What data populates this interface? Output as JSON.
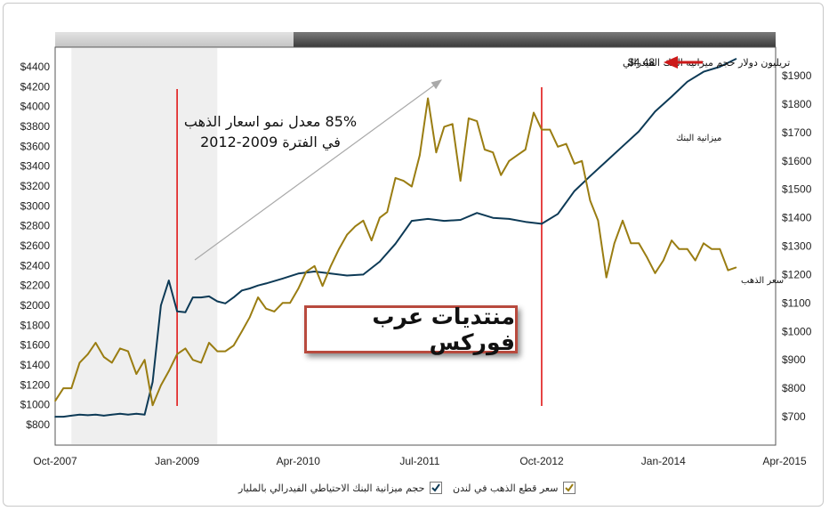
{
  "chart_data": {
    "type": "line",
    "x_ticks": [
      "Oct-2007",
      "Jan-2009",
      "Apr-2010",
      "Jul-2011",
      "Oct-2012",
      "Jan-2014",
      "Apr-2015"
    ],
    "y_left_ticks": [
      "$4400",
      "$4200",
      "$4000",
      "$3800",
      "$3600",
      "$3400",
      "$3200",
      "$3000",
      "$2800",
      "$2600",
      "$2400",
      "$2200",
      "$2000",
      "$1800",
      "$1600",
      "$1400",
      "$1200",
      "$1000",
      "$800"
    ],
    "y_right_ticks": [
      "$1900",
      "$1800",
      "$1700",
      "$1600",
      "$1500",
      "$1400",
      "$1300",
      "$1200",
      "$1100",
      "$1000",
      "$900",
      "$800",
      "$700"
    ],
    "ylim_left": [
      800,
      4400
    ],
    "ylim_right": [
      700,
      1900
    ],
    "series": [
      {
        "name": "حجم ميزانية البنك الاحتياطي الفيدرالي بالمليار",
        "axis": "left",
        "color": "#0d3a56",
        "points": [
          [
            "2007-10-01",
            880
          ],
          [
            "2007-11-01",
            880
          ],
          [
            "2007-12-01",
            890
          ],
          [
            "2008-01-01",
            900
          ],
          [
            "2008-02-01",
            895
          ],
          [
            "2008-03-01",
            900
          ],
          [
            "2008-04-01",
            890
          ],
          [
            "2008-05-01",
            900
          ],
          [
            "2008-06-01",
            910
          ],
          [
            "2008-07-01",
            900
          ],
          [
            "2008-08-01",
            910
          ],
          [
            "2008-09-01",
            900
          ],
          [
            "2008-10-01",
            1230
          ],
          [
            "2008-11-01",
            2000
          ],
          [
            "2008-12-01",
            2250
          ],
          [
            "2009-01-01",
            1940
          ],
          [
            "2009-02-01",
            1930
          ],
          [
            "2009-03-01",
            2080
          ],
          [
            "2009-04-01",
            2080
          ],
          [
            "2009-05-01",
            2090
          ],
          [
            "2009-06-01",
            2040
          ],
          [
            "2009-07-01",
            2020
          ],
          [
            "2009-08-01",
            2080
          ],
          [
            "2009-09-01",
            2150
          ],
          [
            "2009-10-01",
            2170
          ],
          [
            "2009-11-01",
            2200
          ],
          [
            "2009-12-01",
            2220
          ],
          [
            "2010-02-01",
            2270
          ],
          [
            "2010-04-01",
            2320
          ],
          [
            "2010-06-01",
            2340
          ],
          [
            "2010-08-01",
            2320
          ],
          [
            "2010-10-01",
            2300
          ],
          [
            "2010-12-01",
            2310
          ],
          [
            "2011-02-01",
            2440
          ],
          [
            "2011-04-01",
            2620
          ],
          [
            "2011-06-01",
            2850
          ],
          [
            "2011-08-01",
            2870
          ],
          [
            "2011-10-01",
            2850
          ],
          [
            "2011-12-01",
            2860
          ],
          [
            "2012-02-01",
            2930
          ],
          [
            "2012-04-01",
            2880
          ],
          [
            "2012-06-01",
            2870
          ],
          [
            "2012-08-01",
            2840
          ],
          [
            "2012-10-01",
            2820
          ],
          [
            "2012-12-01",
            2920
          ],
          [
            "2013-02-01",
            3150
          ],
          [
            "2013-04-01",
            3300
          ],
          [
            "2013-06-01",
            3450
          ],
          [
            "2013-08-01",
            3600
          ],
          [
            "2013-10-01",
            3750
          ],
          [
            "2013-12-01",
            3950
          ],
          [
            "2014-02-01",
            4100
          ],
          [
            "2014-04-01",
            4250
          ],
          [
            "2014-06-01",
            4350
          ],
          [
            "2014-08-01",
            4400
          ],
          [
            "2014-10-01",
            4480
          ]
        ]
      },
      {
        "name": "سعر قطع الذهب في لندن",
        "axis": "right",
        "color": "#9a7d12",
        "points": [
          [
            "2007-10-01",
            755
          ],
          [
            "2007-11-01",
            800
          ],
          [
            "2007-12-01",
            800
          ],
          [
            "2008-01-01",
            890
          ],
          [
            "2008-02-01",
            920
          ],
          [
            "2008-03-01",
            960
          ],
          [
            "2008-04-01",
            910
          ],
          [
            "2008-05-01",
            890
          ],
          [
            "2008-06-01",
            940
          ],
          [
            "2008-07-01",
            930
          ],
          [
            "2008-08-01",
            850
          ],
          [
            "2008-09-01",
            900
          ],
          [
            "2008-10-01",
            740
          ],
          [
            "2008-11-01",
            810
          ],
          [
            "2008-12-01",
            860
          ],
          [
            "2009-01-01",
            920
          ],
          [
            "2009-02-01",
            940
          ],
          [
            "2009-03-01",
            900
          ],
          [
            "2009-04-01",
            890
          ],
          [
            "2009-05-01",
            960
          ],
          [
            "2009-06-01",
            930
          ],
          [
            "2009-07-01",
            930
          ],
          [
            "2009-08-01",
            950
          ],
          [
            "2009-09-01",
            1000
          ],
          [
            "2009-10-01",
            1050
          ],
          [
            "2009-11-01",
            1120
          ],
          [
            "2009-12-01",
            1080
          ],
          [
            "2010-01-01",
            1070
          ],
          [
            "2010-02-01",
            1100
          ],
          [
            "2010-03-01",
            1100
          ],
          [
            "2010-04-01",
            1150
          ],
          [
            "2010-05-01",
            1210
          ],
          [
            "2010-06-01",
            1230
          ],
          [
            "2010-07-01",
            1160
          ],
          [
            "2010-08-01",
            1230
          ],
          [
            "2010-09-01",
            1290
          ],
          [
            "2010-10-01",
            1340
          ],
          [
            "2010-11-01",
            1370
          ],
          [
            "2010-12-01",
            1390
          ],
          [
            "2011-01-01",
            1320
          ],
          [
            "2011-02-01",
            1400
          ],
          [
            "2011-03-01",
            1420
          ],
          [
            "2011-04-01",
            1540
          ],
          [
            "2011-05-01",
            1530
          ],
          [
            "2011-06-01",
            1510
          ],
          [
            "2011-07-01",
            1620
          ],
          [
            "2011-08-01",
            1820
          ],
          [
            "2011-09-01",
            1630
          ],
          [
            "2011-10-01",
            1720
          ],
          [
            "2011-11-01",
            1730
          ],
          [
            "2011-12-01",
            1530
          ],
          [
            "2012-01-01",
            1750
          ],
          [
            "2012-02-01",
            1740
          ],
          [
            "2012-03-01",
            1640
          ],
          [
            "2012-04-01",
            1630
          ],
          [
            "2012-05-01",
            1550
          ],
          [
            "2012-06-01",
            1600
          ],
          [
            "2012-07-01",
            1620
          ],
          [
            "2012-08-01",
            1640
          ],
          [
            "2012-09-01",
            1770
          ],
          [
            "2012-10-01",
            1710
          ],
          [
            "2012-11-01",
            1710
          ],
          [
            "2012-12-01",
            1650
          ],
          [
            "2013-01-01",
            1660
          ],
          [
            "2013-02-01",
            1590
          ],
          [
            "2013-03-01",
            1600
          ],
          [
            "2013-04-01",
            1460
          ],
          [
            "2013-05-01",
            1390
          ],
          [
            "2013-06-01",
            1190
          ],
          [
            "2013-07-01",
            1310
          ],
          [
            "2013-08-01",
            1390
          ],
          [
            "2013-09-01",
            1310
          ],
          [
            "2013-10-01",
            1310
          ],
          [
            "2013-11-01",
            1260
          ],
          [
            "2013-12-01",
            1205
          ],
          [
            "2014-01-01",
            1250
          ],
          [
            "2014-02-01",
            1320
          ],
          [
            "2014-03-01",
            1290
          ],
          [
            "2014-04-01",
            1290
          ],
          [
            "2014-05-01",
            1250
          ],
          [
            "2014-06-01",
            1310
          ],
          [
            "2014-07-01",
            1290
          ],
          [
            "2014-08-01",
            1290
          ],
          [
            "2014-09-01",
            1215
          ],
          [
            "2014-10-01",
            1225
          ]
        ]
      }
    ],
    "legend": {
      "position": "bottom",
      "items": [
        "حجم ميزانية البنك الاحتياطي الفيدرالي بالمليار",
        "سعر قطع الذهب في لندن"
      ]
    },
    "shaded_region": [
      "2007-12-01",
      "2009-06-01"
    ],
    "vertical_markers": [
      "2009-01-01",
      "2012-10-01"
    ],
    "grid": false,
    "annotations": {
      "growth_text_line1": "85% معدل نمو اسعار الذهب",
      "growth_text_line2": "في الفترة 2009-2012",
      "balance_value": "$4.48",
      "balance_label": "تريليون دولار حجم ميزانية البنك الفيدرالي",
      "bank_series_label": "ميزانية البنك",
      "gold_series_label": "سعر الذهب"
    }
  },
  "watermark": "منتديات عرب فوركس",
  "colors": {
    "bank": "#0d3a56",
    "gold": "#9a7d12",
    "marker": "#e01818",
    "shade": "#efefef",
    "arrow": "#cc1a1a"
  }
}
